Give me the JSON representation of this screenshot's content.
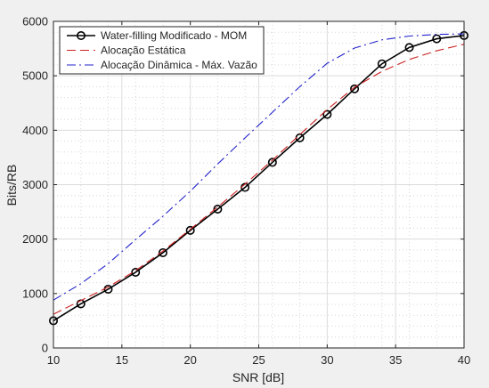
{
  "chart_data": {
    "type": "line",
    "xlabel": "SNR [dB]",
    "ylabel": "Bits/RB",
    "xlim": [
      10,
      40
    ],
    "ylim": [
      0,
      6000
    ],
    "xticks": [
      10,
      15,
      20,
      25,
      30,
      35,
      40
    ],
    "yticks": [
      0,
      1000,
      2000,
      3000,
      4000,
      5000,
      6000
    ],
    "x_minor_ticks": [
      12,
      14,
      16,
      18,
      22,
      24,
      26,
      28,
      32,
      34,
      36,
      38
    ],
    "y_minor_ticks": [
      200,
      400,
      600,
      800,
      1200,
      1400,
      1600,
      1800,
      2200,
      2400,
      2600,
      2800,
      3200,
      3400,
      3600,
      3800,
      4200,
      4400,
      4600,
      4800,
      5200,
      5400,
      5600,
      5800
    ],
    "grid": true,
    "minor_grid": true,
    "legend_position": "top-left",
    "background": "#f0f0f0",
    "plot_background": "#ffffff",
    "series": [
      {
        "name": "Water-filling Modificado - MOM",
        "color": "#000000",
        "line_style": "solid",
        "marker": "circle",
        "x": [
          10,
          12,
          14,
          16,
          18,
          20,
          22,
          24,
          26,
          28,
          30,
          32,
          34,
          36,
          38,
          40
        ],
        "y": [
          500,
          810,
          1080,
          1390,
          1750,
          2160,
          2550,
          2950,
          3410,
          3860,
          4290,
          4760,
          5220,
          5520,
          5680,
          5740
        ]
      },
      {
        "name": "Alocação Estática",
        "color": "#cc2222",
        "line_style": "dashed",
        "marker": "none",
        "x": [
          10,
          12,
          14,
          16,
          18,
          20,
          22,
          24,
          26,
          28,
          30,
          32,
          34,
          36,
          38,
          40
        ],
        "y": [
          620,
          870,
          1120,
          1420,
          1780,
          2180,
          2590,
          3010,
          3450,
          3920,
          4380,
          4790,
          5080,
          5300,
          5460,
          5580
        ]
      },
      {
        "name": "Alocação Dinâmica - Máx. Vazão",
        "color": "#2222cc",
        "line_style": "dashdot",
        "marker": "none",
        "x": [
          10,
          12,
          14,
          16,
          18,
          20,
          22,
          24,
          26,
          28,
          30,
          32,
          34,
          36,
          38,
          40
        ],
        "y": [
          880,
          1180,
          1550,
          1990,
          2420,
          2880,
          3380,
          3860,
          4330,
          4800,
          5230,
          5510,
          5660,
          5730,
          5760,
          5770
        ]
      }
    ]
  }
}
